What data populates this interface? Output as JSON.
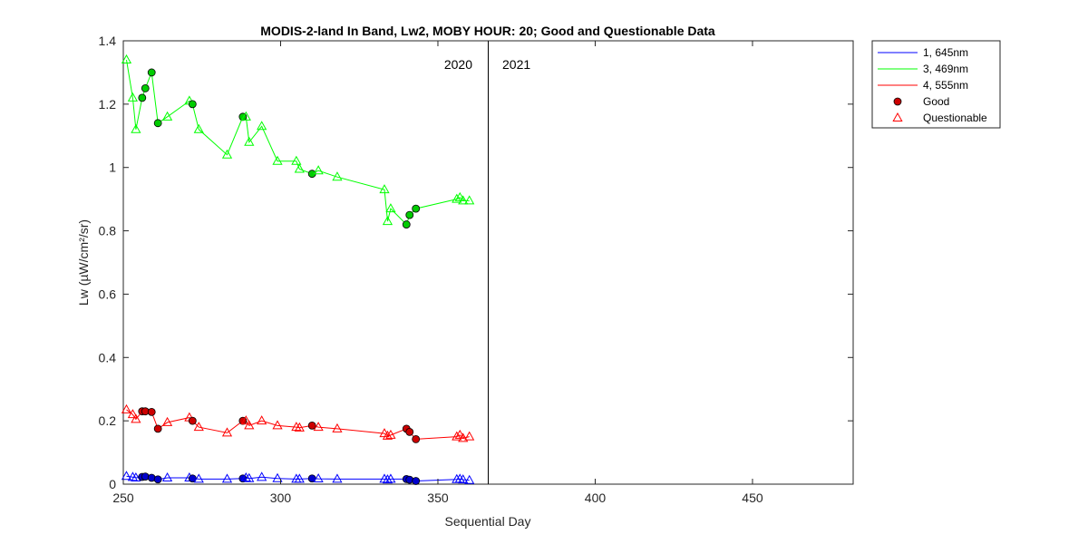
{
  "chart_data": {
    "type": "line",
    "title": "MODIS-2-land In Band,  Lw2, MOBY HOUR: 20;  Good and Questionable Data",
    "xlabel": "Sequential Day",
    "ylabel": "Lw (µW/cm²/sr)",
    "xlim": [
      250,
      482
    ],
    "ylim": [
      0,
      1.4
    ],
    "xticks": [
      250,
      300,
      350,
      400,
      450
    ],
    "yticks": [
      0,
      0.2,
      0.4,
      0.6,
      0.8,
      1,
      1.2,
      1.4
    ],
    "grid": false,
    "legend_position": "outside-top-right",
    "year_divider": {
      "x": 366,
      "left_label": "2020",
      "right_label": "2021"
    },
    "legend": [
      {
        "label": "1, 645nm",
        "kind": "line",
        "color": "#0000FF"
      },
      {
        "label": "3, 469nm",
        "kind": "line",
        "color": "#00FF00"
      },
      {
        "label": "4, 555nm",
        "kind": "line",
        "color": "#FF0000"
      },
      {
        "label": "Good",
        "kind": "circle",
        "color": "#CC0000"
      },
      {
        "label": "Questionable",
        "kind": "triangle",
        "color": "#FF0000"
      }
    ],
    "series": [
      {
        "color": "#00FF00",
        "fill": "#00CC00",
        "points": [
          [
            251,
            1.34,
            "q"
          ],
          [
            253,
            1.22,
            "q"
          ],
          [
            254,
            1.12,
            "q"
          ],
          [
            256,
            1.22,
            "g"
          ],
          [
            257,
            1.25,
            "g"
          ],
          [
            259,
            1.3,
            "g"
          ],
          [
            261,
            1.14,
            "g"
          ],
          [
            264,
            1.16,
            "q"
          ],
          [
            271,
            1.21,
            "q"
          ],
          [
            272,
            1.2,
            "g"
          ],
          [
            274,
            1.12,
            "q"
          ],
          [
            283,
            1.04,
            "q"
          ],
          [
            288,
            1.16,
            "g"
          ],
          [
            289,
            1.16,
            "q"
          ],
          [
            290,
            1.08,
            "q"
          ],
          [
            294,
            1.13,
            "q"
          ],
          [
            299,
            1.02,
            "q"
          ],
          [
            305,
            1.02,
            "q"
          ],
          [
            306,
            0.995,
            "q"
          ],
          [
            310,
            0.98,
            "g"
          ],
          [
            312,
            0.99,
            "q"
          ],
          [
            318,
            0.97,
            "q"
          ],
          [
            333,
            0.93,
            "q"
          ],
          [
            334,
            0.83,
            "q"
          ],
          [
            335,
            0.87,
            "q"
          ],
          [
            340,
            0.82,
            "g"
          ],
          [
            341,
            0.85,
            "g"
          ],
          [
            343,
            0.87,
            "g"
          ],
          [
            356,
            0.9,
            "q"
          ],
          [
            357,
            0.905,
            "q"
          ],
          [
            358,
            0.895,
            "q"
          ],
          [
            360,
            0.895,
            "q"
          ]
        ]
      },
      {
        "color": "#FF0000",
        "fill": "#CC0000",
        "points": [
          [
            251,
            0.235,
            "q"
          ],
          [
            253,
            0.22,
            "q"
          ],
          [
            254,
            0.205,
            "q"
          ],
          [
            256,
            0.23,
            "g"
          ],
          [
            257,
            0.23,
            "g"
          ],
          [
            259,
            0.228,
            "g"
          ],
          [
            261,
            0.175,
            "g"
          ],
          [
            264,
            0.195,
            "q"
          ],
          [
            271,
            0.21,
            "q"
          ],
          [
            272,
            0.2,
            "g"
          ],
          [
            274,
            0.18,
            "q"
          ],
          [
            283,
            0.162,
            "q"
          ],
          [
            288,
            0.2,
            "g"
          ],
          [
            289,
            0.2,
            "q"
          ],
          [
            290,
            0.185,
            "q"
          ],
          [
            294,
            0.2,
            "q"
          ],
          [
            299,
            0.185,
            "q"
          ],
          [
            305,
            0.18,
            "q"
          ],
          [
            306,
            0.178,
            "q"
          ],
          [
            310,
            0.185,
            "g"
          ],
          [
            312,
            0.18,
            "q"
          ],
          [
            318,
            0.175,
            "q"
          ],
          [
            333,
            0.16,
            "q"
          ],
          [
            334,
            0.152,
            "q"
          ],
          [
            335,
            0.155,
            "q"
          ],
          [
            340,
            0.175,
            "g"
          ],
          [
            341,
            0.165,
            "g"
          ],
          [
            343,
            0.142,
            "g"
          ],
          [
            356,
            0.15,
            "q"
          ],
          [
            357,
            0.155,
            "q"
          ],
          [
            358,
            0.145,
            "q"
          ],
          [
            360,
            0.15,
            "q"
          ]
        ]
      },
      {
        "color": "#0000FF",
        "fill": "#0000CC",
        "points": [
          [
            251,
            0.025,
            "q"
          ],
          [
            253,
            0.022,
            "q"
          ],
          [
            254,
            0.02,
            "q"
          ],
          [
            256,
            0.023,
            "g"
          ],
          [
            257,
            0.024,
            "g"
          ],
          [
            259,
            0.02,
            "g"
          ],
          [
            261,
            0.015,
            "g"
          ],
          [
            264,
            0.02,
            "q"
          ],
          [
            271,
            0.02,
            "q"
          ],
          [
            272,
            0.018,
            "g"
          ],
          [
            274,
            0.016,
            "q"
          ],
          [
            283,
            0.016,
            "q"
          ],
          [
            288,
            0.018,
            "g"
          ],
          [
            289,
            0.02,
            "q"
          ],
          [
            290,
            0.018,
            "q"
          ],
          [
            294,
            0.022,
            "q"
          ],
          [
            299,
            0.018,
            "q"
          ],
          [
            305,
            0.016,
            "q"
          ],
          [
            306,
            0.016,
            "q"
          ],
          [
            310,
            0.018,
            "g"
          ],
          [
            312,
            0.017,
            "q"
          ],
          [
            318,
            0.016,
            "q"
          ],
          [
            333,
            0.016,
            "q"
          ],
          [
            334,
            0.014,
            "q"
          ],
          [
            335,
            0.016,
            "q"
          ],
          [
            340,
            0.016,
            "g"
          ],
          [
            341,
            0.014,
            "g"
          ],
          [
            343,
            0.01,
            "g"
          ],
          [
            356,
            0.015,
            "q"
          ],
          [
            357,
            0.016,
            "q"
          ],
          [
            358,
            0.014,
            "q"
          ],
          [
            360,
            0.012,
            "q"
          ]
        ]
      }
    ]
  }
}
